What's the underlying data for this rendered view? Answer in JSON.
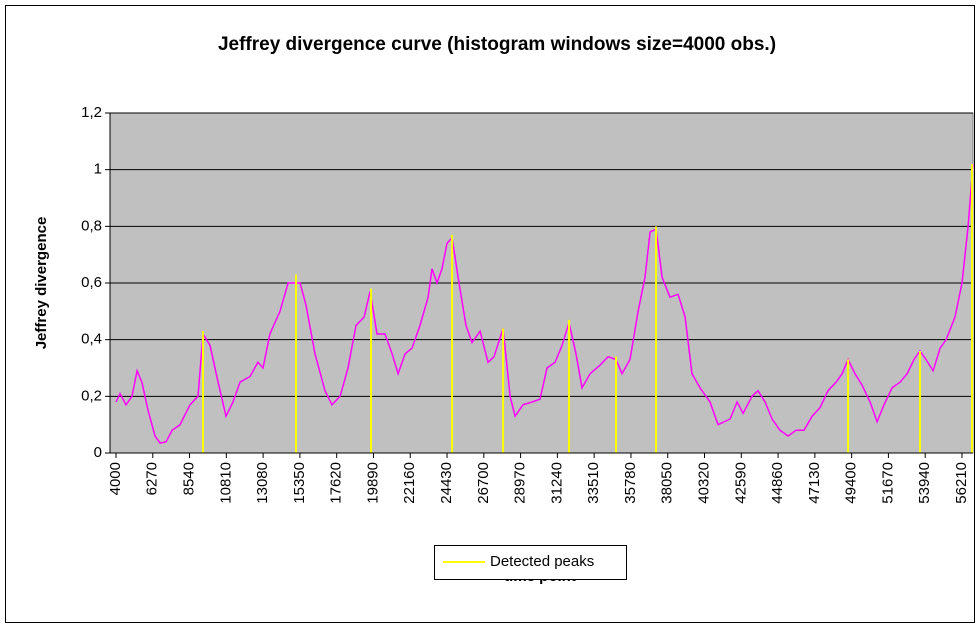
{
  "chart_data": {
    "type": "line",
    "title": "Jeffrey divergence curve (histogram windows size=4000 obs.)",
    "x_label": "time point",
    "y_label": "Jeffrey divergence",
    "xlim": [
      3630,
      56890
    ],
    "ylim": [
      0,
      1.2
    ],
    "xticks": [
      4000,
      6270,
      8540,
      10810,
      13080,
      15350,
      17620,
      19890,
      22160,
      24430,
      26700,
      28970,
      31240,
      33510,
      35780,
      38050,
      40320,
      42590,
      44860,
      47130,
      49400,
      51670,
      53940,
      56210
    ],
    "yticks": [
      0,
      {
        "value": 0.2,
        "label": "0,2"
      },
      {
        "value": 0.4,
        "label": "0,4"
      },
      {
        "value": 0.6,
        "label": "0,6"
      },
      {
        "value": 0.8,
        "label": "0,8"
      },
      1,
      {
        "value": 1.2,
        "label": "1,2"
      }
    ],
    "grid": true,
    "legend": "bottom",
    "series": [
      {
        "color": "#ff00ff",
        "x": [
          4000,
          4250,
          4620,
          4990,
          5300,
          5600,
          5980,
          6410,
          6720,
          7090,
          7460,
          7950,
          8570,
          9060,
          9370,
          9800,
          10300,
          10790,
          11220,
          11650,
          12270,
          12760,
          13070,
          13500,
          14120,
          14620,
          15050,
          15360,
          15730,
          16280,
          16900,
          17330,
          17830,
          18320,
          18810,
          19310,
          19680,
          20110,
          20600,
          21040,
          21410,
          21840,
          22270,
          22760,
          23260,
          23500,
          23810,
          24120,
          24430,
          24740,
          25110,
          25600,
          25970,
          26470,
          26960,
          27330,
          27890,
          28320,
          28630,
          29120,
          29680,
          30170,
          30600,
          31100,
          31530,
          31960,
          32390,
          32760,
          33260,
          33870,
          34370,
          34860,
          35230,
          35720,
          36220,
          36650,
          36960,
          37330,
          37700,
          38190,
          38690,
          39120,
          39550,
          40040,
          40660,
          41160,
          41900,
          42330,
          42700,
          43250,
          43620,
          44060,
          44490,
          44980,
          45480,
          45970,
          46460,
          46960,
          47450,
          47940,
          48440,
          48810,
          49180,
          49610,
          50040,
          50540,
          50970,
          51400,
          51900,
          52390,
          52820,
          53250,
          53620,
          53990,
          54430,
          54860,
          55230,
          55780,
          56210,
          56590,
          56890
        ],
        "values": [
          0.18,
          0.21,
          0.17,
          0.2,
          0.29,
          0.25,
          0.15,
          0.06,
          0.035,
          0.04,
          0.08,
          0.1,
          0.17,
          0.2,
          0.42,
          0.38,
          0.25,
          0.13,
          0.18,
          0.25,
          0.27,
          0.32,
          0.3,
          0.42,
          0.5,
          0.6,
          0.6,
          0.6,
          0.52,
          0.35,
          0.22,
          0.17,
          0.2,
          0.3,
          0.45,
          0.48,
          0.57,
          0.42,
          0.42,
          0.35,
          0.28,
          0.35,
          0.37,
          0.45,
          0.55,
          0.65,
          0.6,
          0.65,
          0.74,
          0.76,
          0.62,
          0.45,
          0.39,
          0.43,
          0.32,
          0.34,
          0.44,
          0.2,
          0.13,
          0.17,
          0.18,
          0.19,
          0.3,
          0.32,
          0.38,
          0.46,
          0.35,
          0.23,
          0.28,
          0.31,
          0.34,
          0.33,
          0.28,
          0.33,
          0.5,
          0.62,
          0.78,
          0.79,
          0.62,
          0.55,
          0.56,
          0.48,
          0.28,
          0.23,
          0.18,
          0.1,
          0.12,
          0.18,
          0.14,
          0.2,
          0.22,
          0.18,
          0.12,
          0.08,
          0.06,
          0.08,
          0.08,
          0.13,
          0.16,
          0.22,
          0.25,
          0.28,
          0.33,
          0.28,
          0.24,
          0.18,
          0.11,
          0.17,
          0.23,
          0.25,
          0.28,
          0.33,
          0.36,
          0.33,
          0.29,
          0.37,
          0.4,
          0.48,
          0.6,
          0.8,
          1.02
        ]
      },
      {
        "name": "Detected peaks",
        "color": "#ffff00",
        "type": "stems",
        "x": [
          9370,
          15110,
          19740,
          24740,
          27890,
          31960,
          34860,
          37330,
          49180,
          53620,
          56830
        ],
        "values": [
          0.43,
          0.63,
          0.58,
          0.77,
          0.44,
          0.47,
          0.34,
          0.8,
          0.33,
          0.36,
          1.02
        ]
      }
    ]
  }
}
